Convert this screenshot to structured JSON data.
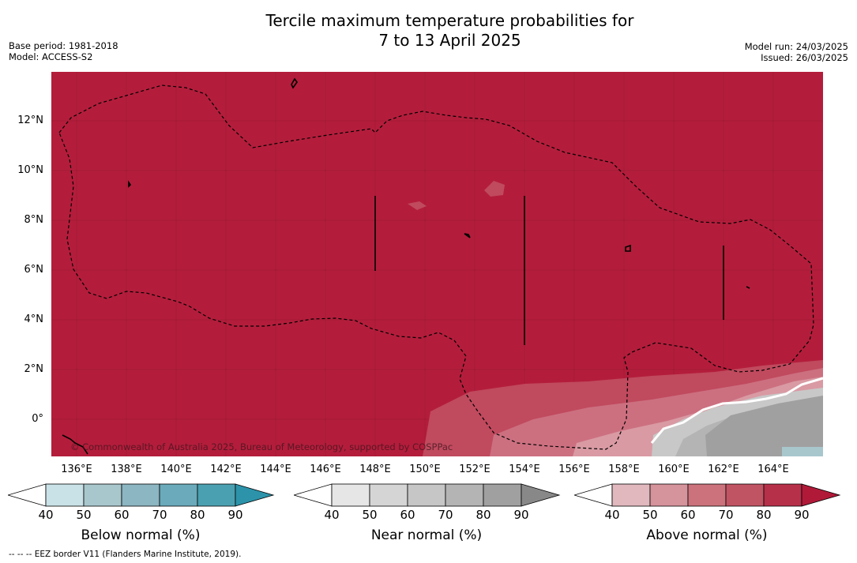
{
  "title_line1": "Tercile maximum temperature probabilities for",
  "title_line2": "7 to 13 April 2025",
  "base_period": "Base period: 1981-2018",
  "model": "Model: ACCESS-S2",
  "model_run": "Model run: 24/03/2025",
  "issued": "Issued: 26/03/2025",
  "copyright": "© Commonwealth of Australia 2025, Bureau of Meteorology, supported by COSPPac",
  "y_ticks": [
    "12°N",
    "10°N",
    "8°N",
    "6°N",
    "4°N",
    "2°N",
    "0°"
  ],
  "x_ticks": [
    "136°E",
    "138°E",
    "140°E",
    "142°E",
    "144°E",
    "146°E",
    "148°E",
    "150°E",
    "152°E",
    "154°E",
    "156°E",
    "158°E",
    "160°E",
    "162°E",
    "164°E"
  ],
  "colorbars": [
    {
      "label": "Below normal (%)",
      "ticks": [
        "40",
        "50",
        "60",
        "70",
        "80",
        "90"
      ],
      "colors": [
        "#ffffff",
        "#c9e2e7",
        "#a8c7cd",
        "#8cb6c1",
        "#6aaabb",
        "#4aa0b1",
        "#2c93aa"
      ]
    },
    {
      "label": "Near normal (%)",
      "ticks": [
        "40",
        "50",
        "60",
        "70",
        "80",
        "90"
      ],
      "colors": [
        "#ffffff",
        "#e6e6e6",
        "#d5d5d5",
        "#c6c6c6",
        "#b4b4b4",
        "#a0a0a0",
        "#888888"
      ]
    },
    {
      "label": "Above normal (%)",
      "ticks": [
        "40",
        "50",
        "60",
        "70",
        "80",
        "90"
      ],
      "colors": [
        "#ffffff",
        "#e0b8bd",
        "#d5939b",
        "#cb727c",
        "#c05463",
        "#b7304a",
        "#b01a38"
      ]
    }
  ],
  "map_colors": {
    "above_90": "#b31d3b",
    "above_80": "#c04a5e",
    "above_70": "#cc7080",
    "above_60": "#d99aa3",
    "near_80": "#a0a0a0",
    "near_70": "#b4b4b4",
    "near_60": "#c8c8c8",
    "below": "#a8c7cd"
  },
  "footnote": "--  --  -- EEZ border V11 (Flanders Marine Institute, 2019)."
}
